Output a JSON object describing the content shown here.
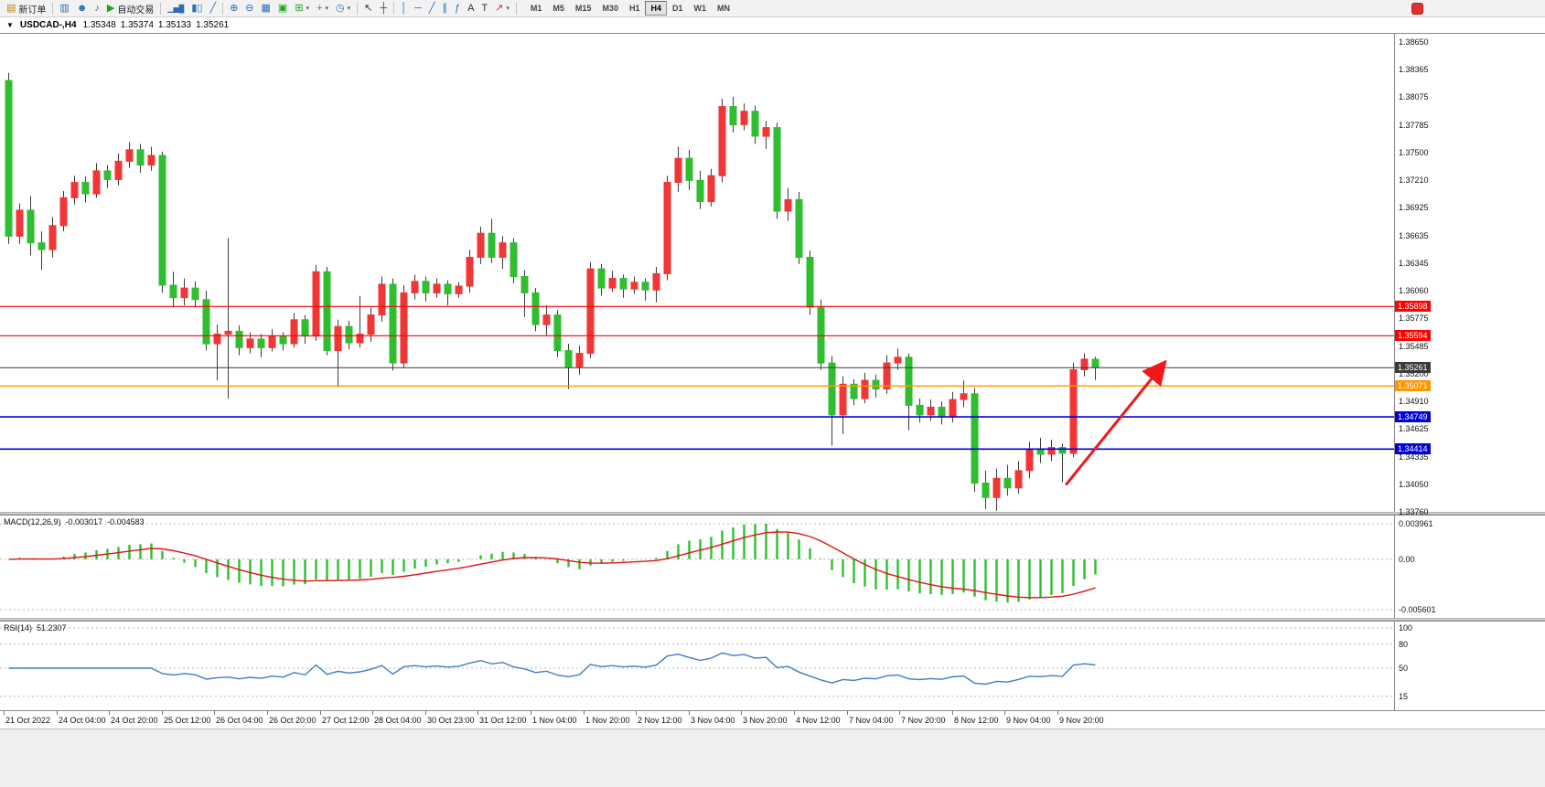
{
  "window": {
    "title": "USDCAD-,H4",
    "ohlc": {
      "open": "1.35348",
      "high": "1.35374",
      "low": "1.35133",
      "close": "1.35261"
    }
  },
  "toolbar": {
    "items": [
      {
        "name": "new-order-button",
        "icon": "new-order-icon",
        "glyph": "▤",
        "color": "#b8860b",
        "label": "新订单"
      },
      {
        "sep": true
      },
      {
        "name": "charts-button",
        "icon": "bar-analysis-icon",
        "glyph": "▥",
        "color": "#2b6cb0"
      },
      {
        "name": "market-watch-button",
        "icon": "profile-icon",
        "glyph": "☻",
        "color": "#2b6cb0"
      },
      {
        "name": "alerts-button",
        "icon": "sound-icon",
        "glyph": "♪",
        "color": "#8040a0"
      },
      {
        "name": "autotrading-button",
        "icon": "autotrading-play-icon",
        "glyph": "▶",
        "color": "#18a818",
        "label": "自动交易"
      },
      {
        "sep": true
      },
      {
        "name": "bar-chart-mode-button",
        "icon": "ohlc-bars-icon",
        "glyph": "▁▅█",
        "color": "#2b6cb0"
      },
      {
        "name": "candlestick-mode-button",
        "icon": "candlesticks-icon",
        "glyph": "▮▯",
        "color": "#2b6cb0"
      },
      {
        "name": "line-chart-mode-button",
        "icon": "line-chart-icon",
        "glyph": "╱",
        "color": "#2b6cb0"
      },
      {
        "sep": true
      },
      {
        "name": "zoom-in-button",
        "icon": "zoom-in-icon",
        "glyph": "⊕",
        "color": "#2b6cb0"
      },
      {
        "name": "zoom-out-button",
        "icon": "zoom-out-icon",
        "glyph": "⊖",
        "color": "#2b6cb0"
      },
      {
        "name": "grid-button",
        "icon": "grid-icon",
        "glyph": "▦",
        "color": "#2b6cb0"
      },
      {
        "name": "tile-windows-button",
        "icon": "tile-windows-icon",
        "glyph": "▣",
        "color": "#18a818"
      },
      {
        "name": "new-chart-button",
        "icon": "new-chart-icon",
        "glyph": "⊞",
        "color": "#18a818",
        "caret": true
      },
      {
        "name": "indicators-button",
        "icon": "indicators-plus-icon",
        "glyph": "+",
        "color": "#18a818",
        "caret": true
      },
      {
        "name": "periods-button",
        "icon": "clock-icon",
        "glyph": "◷",
        "color": "#2b6cb0",
        "caret": true
      },
      {
        "sep": true
      },
      {
        "name": "cursor-button",
        "icon": "cursor-arrow-icon",
        "glyph": "↖",
        "color": "#333333"
      },
      {
        "name": "crosshair-button",
        "icon": "crosshair-icon",
        "glyph": "┼",
        "color": "#333333"
      },
      {
        "sep": true
      },
      {
        "name": "vertical-line-button",
        "icon": "vertical-line-icon",
        "glyph": "│",
        "color": "#2b6cb0"
      },
      {
        "name": "horizontal-line-button",
        "icon": "horizontal-line-icon",
        "glyph": "─",
        "color": "#2b6cb0"
      },
      {
        "name": "trendline-button",
        "icon": "trendline-icon",
        "glyph": "╱",
        "color": "#2b6cb0"
      },
      {
        "name": "channel-button",
        "icon": "channel-icon",
        "glyph": "∥",
        "color": "#2b6cb0"
      },
      {
        "name": "fibonacci-button",
        "icon": "fibonacci-icon",
        "glyph": "ƒ",
        "color": "#2b6cb0"
      },
      {
        "name": "text-button",
        "icon": "text-icon",
        "glyph": "A",
        "color": "#333333"
      },
      {
        "name": "label-button",
        "icon": "label-icon",
        "glyph": "T",
        "color": "#333333"
      },
      {
        "name": "shapes-button",
        "icon": "arrow-shape-icon",
        "glyph": "↗",
        "color": "#d03030",
        "caret": true
      },
      {
        "sep": true
      }
    ],
    "timeframes": [
      "M1",
      "M5",
      "M15",
      "M30",
      "H1",
      "H4",
      "D1",
      "W1",
      "MN"
    ],
    "active_timeframe": "H4"
  },
  "chart_data": {
    "type": "candlestick",
    "symbol": "USDCAD",
    "timeframe": "H4",
    "colors": {
      "bull": "#f23535",
      "bear": "#2fbe2f",
      "wick": "#3c3c3c",
      "macd_hist": "#2fbe2f",
      "macd_signal": "#e01515",
      "rsi": "#3e7fc1",
      "arrow": "#f01818"
    },
    "price_axis": {
      "min": 1.3376,
      "max": 1.3865,
      "ticks": [
        1.3865,
        1.38365,
        1.38075,
        1.37785,
        1.375,
        1.3721,
        1.36925,
        1.36635,
        1.36345,
        1.3606,
        1.35775,
        1.35485,
        1.352,
        1.3491,
        1.34625,
        1.34335,
        1.3405,
        1.3376
      ]
    },
    "candles": [
      [
        1.3825,
        1.3833,
        1.3655,
        1.3663
      ],
      [
        1.3663,
        1.3697,
        1.3655,
        1.369
      ],
      [
        1.369,
        1.3705,
        1.3643,
        1.3656
      ],
      [
        1.3656,
        1.3668,
        1.3628,
        1.3649
      ],
      [
        1.3649,
        1.3683,
        1.3641,
        1.3674
      ],
      [
        1.3674,
        1.371,
        1.3668,
        1.3703
      ],
      [
        1.3703,
        1.3726,
        1.3696,
        1.3719
      ],
      [
        1.3719,
        1.3725,
        1.3698,
        1.3707
      ],
      [
        1.3707,
        1.3739,
        1.3703,
        1.3731
      ],
      [
        1.3731,
        1.3737,
        1.3713,
        1.3722
      ],
      [
        1.3722,
        1.3749,
        1.3716,
        1.3741
      ],
      [
        1.3741,
        1.3761,
        1.3734,
        1.3753
      ],
      [
        1.3753,
        1.3759,
        1.3729,
        1.3737
      ],
      [
        1.3737,
        1.3756,
        1.3731,
        1.3747
      ],
      [
        1.3747,
        1.3751,
        1.3604,
        1.3612
      ],
      [
        1.3612,
        1.3626,
        1.3589,
        1.3599
      ],
      [
        1.3599,
        1.3619,
        1.3591,
        1.3609
      ],
      [
        1.3609,
        1.3616,
        1.3589,
        1.3597
      ],
      [
        1.3597,
        1.3606,
        1.3544,
        1.3551
      ],
      [
        1.3551,
        1.3571,
        1.3513,
        1.3561
      ],
      [
        1.3561,
        1.3661,
        1.3494,
        1.3564
      ],
      [
        1.3564,
        1.357,
        1.3539,
        1.3547
      ],
      [
        1.3547,
        1.3563,
        1.3541,
        1.3556
      ],
      [
        1.3556,
        1.3561,
        1.3537,
        1.3547
      ],
      [
        1.3547,
        1.3566,
        1.3543,
        1.3559
      ],
      [
        1.3559,
        1.3563,
        1.3544,
        1.3551
      ],
      [
        1.3551,
        1.3583,
        1.3547,
        1.3576
      ],
      [
        1.3576,
        1.3581,
        1.3551,
        1.3559
      ],
      [
        1.3559,
        1.3633,
        1.3554,
        1.3626
      ],
      [
        1.3626,
        1.3631,
        1.3539,
        1.3544
      ],
      [
        1.3544,
        1.3576,
        1.3506,
        1.3569
      ],
      [
        1.3569,
        1.3575,
        1.3545,
        1.3552
      ],
      [
        1.3552,
        1.3601,
        1.3547,
        1.3561
      ],
      [
        1.3561,
        1.3589,
        1.3553,
        1.3581
      ],
      [
        1.3581,
        1.3621,
        1.3574,
        1.3613
      ],
      [
        1.3613,
        1.3619,
        1.3523,
        1.3531
      ],
      [
        1.3531,
        1.3612,
        1.3526,
        1.3604
      ],
      [
        1.3604,
        1.3623,
        1.3597,
        1.3616
      ],
      [
        1.3616,
        1.3621,
        1.3595,
        1.3604
      ],
      [
        1.3604,
        1.3619,
        1.3599,
        1.3613
      ],
      [
        1.3613,
        1.3617,
        1.3591,
        1.3603
      ],
      [
        1.3603,
        1.3615,
        1.3599,
        1.3611
      ],
      [
        1.3611,
        1.3649,
        1.3604,
        1.3641
      ],
      [
        1.3641,
        1.3673,
        1.3634,
        1.3666
      ],
      [
        1.3666,
        1.3681,
        1.3635,
        1.3641
      ],
      [
        1.3641,
        1.3663,
        1.3629,
        1.3656
      ],
      [
        1.3656,
        1.3661,
        1.3614,
        1.3621
      ],
      [
        1.3621,
        1.3628,
        1.3579,
        1.3604
      ],
      [
        1.3604,
        1.3609,
        1.3564,
        1.3571
      ],
      [
        1.3571,
        1.3591,
        1.3559,
        1.3581
      ],
      [
        1.3581,
        1.3586,
        1.3537,
        1.3544
      ],
      [
        1.3544,
        1.3551,
        1.3504,
        1.3527
      ],
      [
        1.3527,
        1.3549,
        1.3519,
        1.3541
      ],
      [
        1.3541,
        1.3636,
        1.3536,
        1.3629
      ],
      [
        1.3629,
        1.3634,
        1.3601,
        1.3609
      ],
      [
        1.3609,
        1.3627,
        1.3605,
        1.3619
      ],
      [
        1.3619,
        1.3623,
        1.3599,
        1.3608
      ],
      [
        1.3608,
        1.3621,
        1.3603,
        1.3615
      ],
      [
        1.3615,
        1.3619,
        1.3596,
        1.3607
      ],
      [
        1.3607,
        1.3631,
        1.3594,
        1.3624
      ],
      [
        1.3624,
        1.3726,
        1.3617,
        1.3719
      ],
      [
        1.3719,
        1.3756,
        1.3709,
        1.3744
      ],
      [
        1.3744,
        1.3753,
        1.3711,
        1.3721
      ],
      [
        1.3721,
        1.3731,
        1.3691,
        1.3699
      ],
      [
        1.3699,
        1.3733,
        1.3694,
        1.3726
      ],
      [
        1.3726,
        1.3806,
        1.3719,
        1.3798
      ],
      [
        1.3798,
        1.3808,
        1.3771,
        1.3779
      ],
      [
        1.3779,
        1.3801,
        1.3773,
        1.3793
      ],
      [
        1.3793,
        1.3799,
        1.3759,
        1.3767
      ],
      [
        1.3767,
        1.3783,
        1.3754,
        1.3776
      ],
      [
        1.3776,
        1.3781,
        1.3681,
        1.3689
      ],
      [
        1.3689,
        1.3713,
        1.3679,
        1.3701
      ],
      [
        1.3701,
        1.3709,
        1.3634,
        1.3641
      ],
      [
        1.3641,
        1.3648,
        1.3581,
        1.3589
      ],
      [
        1.3589,
        1.3597,
        1.3524,
        1.3531
      ],
      [
        1.3531,
        1.3538,
        1.3445,
        1.3477
      ],
      [
        1.3477,
        1.3517,
        1.3457,
        1.3509
      ],
      [
        1.3509,
        1.3514,
        1.3487,
        1.3494
      ],
      [
        1.3494,
        1.3521,
        1.3489,
        1.3513
      ],
      [
        1.3513,
        1.3519,
        1.3495,
        1.3504
      ],
      [
        1.3504,
        1.3539,
        1.3499,
        1.3531
      ],
      [
        1.3531,
        1.3546,
        1.3524,
        1.3537
      ],
      [
        1.3537,
        1.3541,
        1.3461,
        1.3487
      ],
      [
        1.3487,
        1.3494,
        1.3469,
        1.3477
      ],
      [
        1.3477,
        1.3493,
        1.3471,
        1.3485
      ],
      [
        1.3485,
        1.3491,
        1.3467,
        1.3475
      ],
      [
        1.3475,
        1.3501,
        1.3469,
        1.3493
      ],
      [
        1.3493,
        1.3513,
        1.3485,
        1.3499
      ],
      [
        1.3499,
        1.3505,
        1.3397,
        1.3406
      ],
      [
        1.3406,
        1.3419,
        1.3379,
        1.3391
      ],
      [
        1.3391,
        1.3421,
        1.3377,
        1.3411
      ],
      [
        1.3411,
        1.3425,
        1.3393,
        1.3401
      ],
      [
        1.3401,
        1.3429,
        1.3395,
        1.3419
      ],
      [
        1.3419,
        1.3449,
        1.3411,
        1.3441
      ],
      [
        1.3441,
        1.3453,
        1.3427,
        1.3436
      ],
      [
        1.3436,
        1.3451,
        1.3429,
        1.3443
      ],
      [
        1.3443,
        1.3447,
        1.3407,
        1.3437
      ],
      [
        1.3437,
        1.3531,
        1.3433,
        1.3524
      ],
      [
        1.3524,
        1.3541,
        1.3517,
        1.3535
      ],
      [
        1.35348,
        1.35374,
        1.35133,
        1.35261
      ]
    ],
    "hlines": [
      {
        "price": 1.35898,
        "color": "#ff0000",
        "label": "1.35898",
        "width": 1.2
      },
      {
        "price": 1.35594,
        "color": "#ff0000",
        "label": "1.35594",
        "width": 1.2
      },
      {
        "price": 1.35261,
        "color": "#3a3a3a",
        "label": "1.35261",
        "width": 1
      },
      {
        "price": 1.35071,
        "color": "#ff9800",
        "label": "1.35071",
        "width": 1.4
      },
      {
        "price": 1.34749,
        "color": "#0000d8",
        "label": "1.34749",
        "width": 1.6
      },
      {
        "price": 1.34414,
        "color": "#0000d8",
        "label": "1.34414",
        "width": 1.6
      }
    ],
    "arrow": {
      "from": {
        "candle": 96.3,
        "price": 1.3404
      },
      "to": {
        "candle": 105.2,
        "price": 1.353
      },
      "color": "#f01818"
    },
    "macd": {
      "name": "MACD(12,26,9)",
      "value_main": "-0.003017",
      "value_signal": "-0.004583",
      "axis_max": 0.003961,
      "axis_min": -0.005601,
      "axis_labels": [
        "0.003961",
        "0.00",
        "-0.005601"
      ]
    },
    "rsi": {
      "name": "RSI(14)",
      "value": "51.2307",
      "levels": [
        100,
        80,
        50,
        15
      ]
    },
    "time_labels": [
      "21 Oct 2022",
      "24 Oct 04:00",
      "24 Oct 20:00",
      "25 Oct 12:00",
      "26 Oct 04:00",
      "26 Oct 20:00",
      "27 Oct 12:00",
      "28 Oct 04:00",
      "30 Oct 23:00",
      "31 Oct 12:00",
      "1 Nov 04:00",
      "1 Nov 20:00",
      "2 Nov 12:00",
      "3 Nov 04:00",
      "3 Nov 20:00",
      "4 Nov 12:00",
      "7 Nov 04:00",
      "7 Nov 20:00",
      "8 Nov 12:00",
      "9 Nov 04:00",
      "9 Nov 20:00"
    ]
  }
}
